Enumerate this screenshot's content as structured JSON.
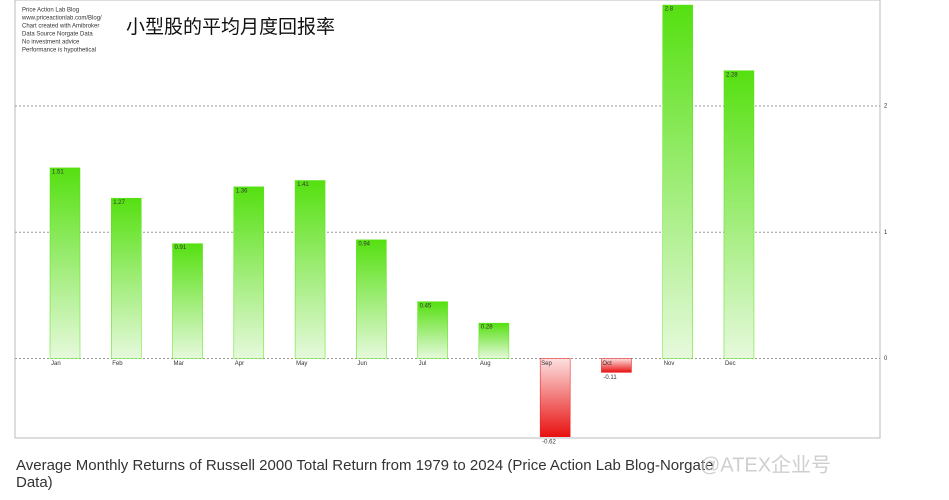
{
  "chart_data": {
    "type": "bar",
    "title": "小型股的平均月度回报率",
    "notes": [
      "Price Action Lab Blog",
      "www.priceactionlab.com/Blog/",
      "Chart created with Amibroker",
      "Data Source Norgate Data",
      "No investment advice",
      "Performance is hypothetical"
    ],
    "caption": "Average Monthly Returns of Russell 2000 Total Return from 1979 to 2024 (Price Action Lab Blog-Norgate Data)",
    "watermark": "@ATEX企业号",
    "categories": [
      "Jan",
      "Feb",
      "Mar",
      "Apr",
      "May",
      "Jun",
      "Jul",
      "Aug",
      "Sep",
      "Oct",
      "Nov",
      "Dec"
    ],
    "values": [
      1.51,
      1.27,
      0.91,
      1.36,
      1.41,
      0.94,
      0.45,
      0.28,
      -0.62,
      -0.11,
      2.8,
      2.28
    ],
    "color": "#55e010",
    "negative_color": "#e81010",
    "ylim": [
      -0.63,
      2.84
    ],
    "yticks": [
      0,
      1,
      2
    ],
    "grid": true
  }
}
